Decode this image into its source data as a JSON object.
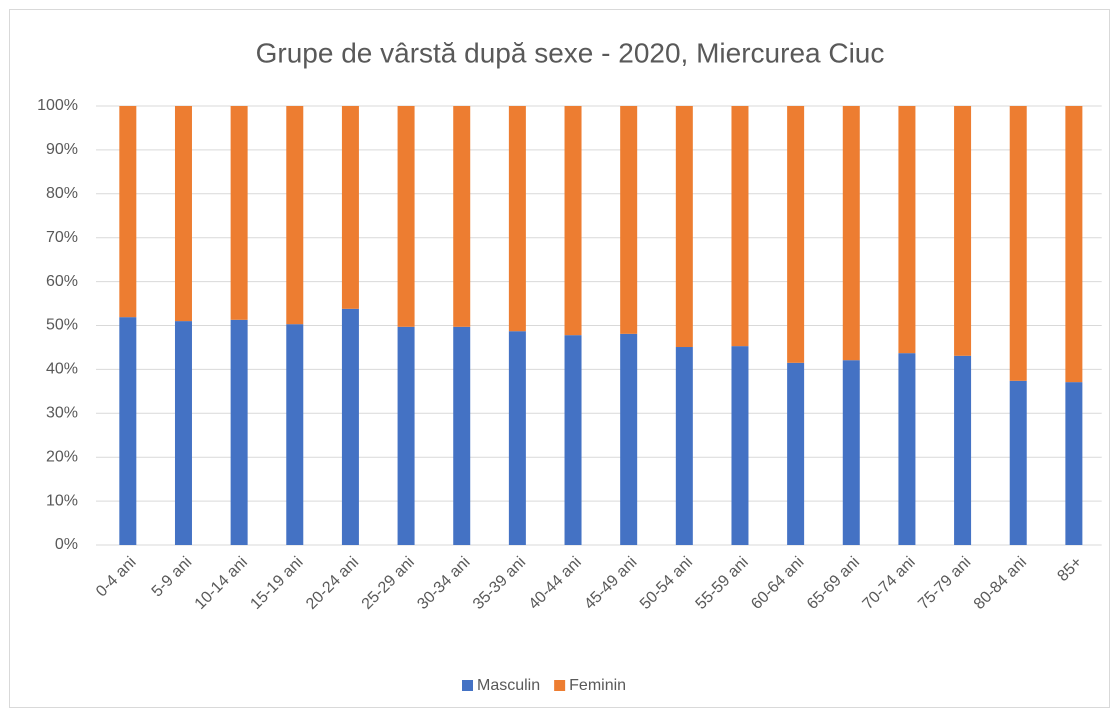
{
  "chart_data": {
    "type": "stacked_bar",
    "title": "Grupe de vârstă după sexe - 2020, Miercurea Ciuc",
    "categories": [
      "0-4 ani",
      "5-9 ani",
      "10-14 ani",
      "15-19 ani",
      "20-24 ani",
      "25-29 ani",
      "30-34 ani",
      "35-39 ani",
      "40-44 ani",
      "45-49 ani",
      "50-54 ani",
      "55-59 ani",
      "60-64 ani",
      "65-69 ani",
      "70-74 ani",
      "75-79 ani",
      "80-84 ani",
      "85+"
    ],
    "series": [
      {
        "name": "Masculin",
        "color": "#4472c4",
        "values": [
          51.9,
          51.0,
          51.3,
          50.3,
          53.8,
          49.7,
          49.7,
          48.7,
          47.8,
          48.1,
          45.1,
          45.3,
          41.5,
          42.1,
          43.7,
          43.1,
          37.4,
          37.1
        ]
      },
      {
        "name": "Feminin",
        "color": "#ed7d31",
        "values": [
          48.1,
          49.0,
          48.7,
          49.7,
          46.2,
          50.3,
          50.3,
          51.3,
          52.2,
          51.9,
          54.9,
          54.7,
          58.5,
          57.9,
          56.3,
          56.9,
          62.6,
          62.9
        ]
      }
    ],
    "ylim": [
      0,
      100
    ],
    "yticks": [
      {
        "value": 0,
        "label": "0%"
      },
      {
        "value": 10,
        "label": "10%"
      },
      {
        "value": 20,
        "label": "20%"
      },
      {
        "value": 30,
        "label": "30%"
      },
      {
        "value": 40,
        "label": "40%"
      },
      {
        "value": 50,
        "label": "50%"
      },
      {
        "value": 60,
        "label": "60%"
      },
      {
        "value": 70,
        "label": "70%"
      },
      {
        "value": 80,
        "label": "80%"
      },
      {
        "value": 90,
        "label": "90%"
      },
      {
        "value": 100,
        "label": "100%"
      }
    ],
    "grid": true,
    "legend": "bottom"
  }
}
